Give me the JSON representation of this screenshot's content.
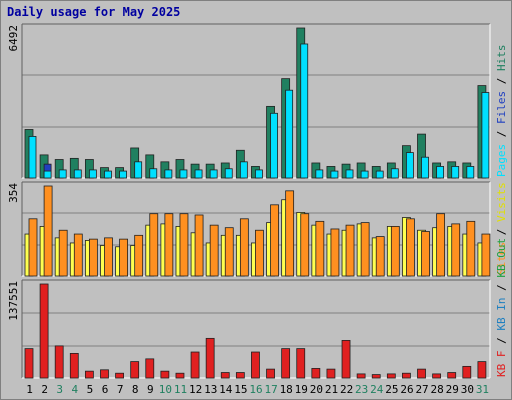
{
  "title": "Daily usage for May 2025",
  "chart_data": [
    {
      "type": "bar",
      "panel": "top",
      "ymax_label": "6492",
      "ylim": [
        0,
        6492
      ],
      "categories": [
        "1",
        "2",
        "3",
        "4",
        "5",
        "6",
        "7",
        "8",
        "9",
        "10",
        "11",
        "12",
        "13",
        "14",
        "15",
        "16",
        "17",
        "18",
        "19",
        "20",
        "21",
        "22",
        "23",
        "24",
        "25",
        "26",
        "27",
        "28",
        "29",
        "30",
        "31"
      ],
      "series": [
        {
          "name": "Hits",
          "color": "#208060",
          "values": [
            2100,
            1000,
            800,
            850,
            800,
            450,
            450,
            1300,
            1000,
            700,
            800,
            600,
            600,
            650,
            1200,
            500,
            3100,
            4300,
            6492,
            650,
            500,
            600,
            650,
            500,
            650,
            1400,
            1900,
            650,
            700,
            650,
            4000
          ]
        },
        {
          "name": "Files",
          "color": "#2040c0",
          "values": [
            0,
            600,
            0,
            0,
            0,
            0,
            0,
            0,
            0,
            0,
            0,
            0,
            0,
            0,
            0,
            0,
            0,
            0,
            0,
            0,
            0,
            0,
            0,
            0,
            0,
            0,
            0,
            0,
            0,
            0,
            0
          ]
        },
        {
          "name": "Pages",
          "color": "#00e0ff",
          "values": [
            1800,
            300,
            350,
            350,
            350,
            300,
            300,
            700,
            400,
            350,
            350,
            350,
            350,
            400,
            700,
            350,
            2800,
            3800,
            5800,
            350,
            300,
            350,
            300,
            300,
            400,
            1100,
            900,
            500,
            500,
            500,
            3700
          ]
        }
      ],
      "legend": [
        "Pages",
        "/",
        "Files",
        "/",
        "Hits"
      ]
    },
    {
      "type": "bar",
      "panel": "middle",
      "ymax_label": "354",
      "ylim": [
        0,
        354
      ],
      "categories": [
        "1",
        "2",
        "3",
        "4",
        "5",
        "6",
        "7",
        "8",
        "9",
        "10",
        "11",
        "12",
        "13",
        "14",
        "15",
        "16",
        "17",
        "18",
        "19",
        "20",
        "21",
        "22",
        "23",
        "24",
        "25",
        "26",
        "27",
        "28",
        "29",
        "30",
        "31"
      ],
      "series": [
        {
          "name": "Visits",
          "color": "#ffff50",
          "values": [
            165,
            195,
            150,
            130,
            140,
            120,
            115,
            120,
            200,
            205,
            195,
            170,
            130,
            160,
            160,
            130,
            210,
            300,
            250,
            200,
            165,
            180,
            205,
            150,
            195,
            230,
            180,
            190,
            195,
            165,
            130
          ]
        },
        {
          "name": "Sites",
          "color": "#ff9020",
          "values": [
            225,
            354,
            180,
            165,
            145,
            150,
            145,
            160,
            245,
            245,
            245,
            240,
            200,
            190,
            225,
            180,
            280,
            335,
            245,
            215,
            185,
            200,
            210,
            155,
            195,
            225,
            175,
            245,
            205,
            215,
            165
          ]
        }
      ],
      "legend": [
        "Sites",
        "/",
        "Visits"
      ]
    },
    {
      "type": "bar",
      "panel": "bottom",
      "ymax_label": "137551",
      "ylim": [
        0,
        137551
      ],
      "categories": [
        "1",
        "2",
        "3",
        "4",
        "5",
        "6",
        "7",
        "8",
        "9",
        "10",
        "11",
        "12",
        "13",
        "14",
        "15",
        "16",
        "17",
        "18",
        "19",
        "20",
        "21",
        "22",
        "23",
        "24",
        "25",
        "26",
        "27",
        "28",
        "29",
        "30",
        "31"
      ],
      "series": [
        {
          "name": "KB F",
          "color": "#e02020",
          "values": [
            43000,
            137551,
            47000,
            36000,
            10000,
            12000,
            7000,
            24000,
            28000,
            10000,
            7000,
            38000,
            58000,
            8000,
            8000,
            38000,
            13000,
            43000,
            43000,
            14000,
            13000,
            55000,
            6000,
            5000,
            6000,
            7000,
            13000,
            6000,
            8000,
            17000,
            24000
          ]
        }
      ],
      "legend": [
        "KB F",
        "/",
        "KB In",
        "/",
        "KB Out"
      ]
    }
  ],
  "x_labels": [
    "1",
    "2",
    "3",
    "4",
    "5",
    "6",
    "7",
    "8",
    "9",
    "10",
    "11",
    "12",
    "13",
    "14",
    "15",
    "16",
    "17",
    "18",
    "19",
    "20",
    "21",
    "22",
    "23",
    "24",
    "25",
    "26",
    "27",
    "28",
    "29",
    "30",
    "31"
  ],
  "x_label_colors": [
    "#000000",
    "#000000",
    "#208060",
    "#208060",
    "#000000",
    "#000000",
    "#000000",
    "#000000",
    "#000000",
    "#208060",
    "#208060",
    "#000000",
    "#000000",
    "#000000",
    "#000000",
    "#208060",
    "#208060",
    "#000000",
    "#000000",
    "#000000",
    "#000000",
    "#000000",
    "#208060",
    "#208060",
    "#000000",
    "#000000",
    "#000000",
    "#000000",
    "#000000",
    "#000000",
    "#208060"
  ],
  "legend_colors": {
    "Hits": "#208060",
    "Files": "#2040c0",
    "Pages": "#00e0ff",
    "Visits": "#e0e000",
    "Sites": "#ff9020",
    "KB F": "#e02020",
    "KB In": "#2080c0",
    "KB Out": "#20a040",
    "sep": "#000000"
  }
}
